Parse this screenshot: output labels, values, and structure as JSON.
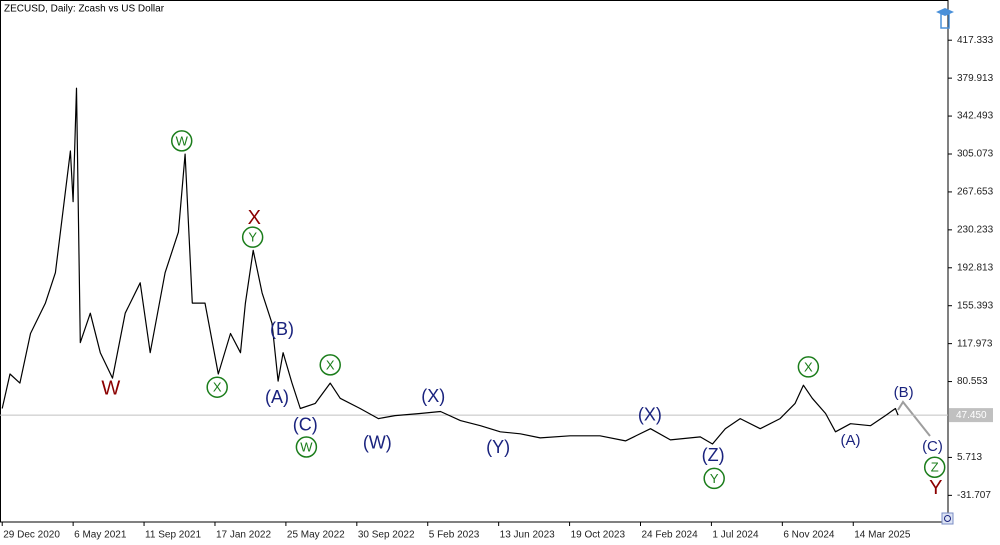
{
  "chart_data": {
    "type": "line",
    "title": "ZECUSD, Daily:  Zcash vs US Dollar",
    "color": "#000000",
    "x": [
      "2020-12-29",
      "2021-01-12",
      "2021-01-30",
      "2021-02-18",
      "2021-03-17",
      "2021-04-04",
      "2021-04-22",
      "2021-05-01",
      "2021-05-06",
      "2021-05-12",
      "2021-05-19",
      "2021-06-06",
      "2021-06-24",
      "2021-07-16",
      "2021-08-08",
      "2021-09-04",
      "2021-09-22",
      "2021-10-19",
      "2021-11-12",
      "2021-11-24",
      "2021-12-07",
      "2021-12-30",
      "2022-01-23",
      "2022-02-14",
      "2022-03-04",
      "2022-03-13",
      "2022-03-27",
      "2022-04-12",
      "2022-04-30",
      "2022-05-11",
      "2022-05-20",
      "2022-06-05",
      "2022-06-20",
      "2022-07-17",
      "2022-08-13",
      "2022-08-31",
      "2022-10-06",
      "2022-11-08",
      "2022-12-08",
      "2023-01-22",
      "2023-02-28",
      "2023-04-05",
      "2023-05-11",
      "2023-06-16",
      "2023-07-22",
      "2023-08-27",
      "2023-10-20",
      "2023-12-13",
      "2024-01-28",
      "2024-03-13",
      "2024-04-18",
      "2024-06-11",
      "2024-07-03",
      "2024-07-26",
      "2024-08-22",
      "2024-09-27",
      "2024-11-02",
      "2024-11-29",
      "2024-12-14",
      "2024-12-30",
      "2025-01-23",
      "2025-02-10",
      "2025-03-09",
      "2025-04-14",
      "2025-05-11",
      "2025-05-29",
      "2025-06-03"
    ],
    "values": [
      54,
      88,
      79,
      128,
      158,
      188,
      268,
      308,
      258,
      370,
      119,
      148,
      109,
      84,
      148,
      178,
      109,
      188,
      228,
      305,
      158,
      158,
      88,
      128,
      109,
      158,
      210,
      168,
      138,
      81,
      109,
      79,
      54,
      59,
      79,
      64,
      54,
      44,
      47,
      49,
      51,
      42,
      37,
      31,
      29,
      25,
      27,
      27,
      22,
      34,
      23,
      26,
      19,
      34,
      44,
      34,
      44,
      59,
      77,
      64,
      49,
      31,
      39,
      37,
      47,
      54,
      47.45
    ],
    "last_price": {
      "value": 47.45,
      "label": "47.450"
    },
    "xlim": [
      "2020-12-25",
      "2025-09-01"
    ],
    "xticks": [
      {
        "value": "2020-12-29",
        "label": "29 Dec 2020"
      },
      {
        "value": "2021-05-06",
        "label": "6 May 2021"
      },
      {
        "value": "2021-09-11",
        "label": "11 Sep 2021"
      },
      {
        "value": "2022-01-17",
        "label": "17 Jan 2022"
      },
      {
        "value": "2022-05-25",
        "label": "25 May 2022"
      },
      {
        "value": "2022-09-30",
        "label": "30 Sep 2022"
      },
      {
        "value": "2023-02-05",
        "label": "5 Feb 2023"
      },
      {
        "value": "2023-06-13",
        "label": "13 Jun 2023"
      },
      {
        "value": "2023-10-19",
        "label": "19 Oct 2023"
      },
      {
        "value": "2024-02-24",
        "label": "24 Feb 2024"
      },
      {
        "value": "2024-07-01",
        "label": "1 Jul 2024"
      },
      {
        "value": "2024-11-06",
        "label": "6 Nov 2024"
      },
      {
        "value": "2025-03-14",
        "label": "14 Mar 2025"
      }
    ],
    "ylim": [
      -58,
      457
    ],
    "yticks": [
      417.333,
      379.913,
      342.493,
      305.073,
      267.653,
      230.233,
      192.813,
      155.393,
      117.973,
      80.553,
      5.713,
      -31.707
    ],
    "annotations": [
      {
        "text": "W",
        "x": "2021-07-13",
        "y": 73,
        "color": "#8b0000",
        "style": "large"
      },
      {
        "text": "W",
        "x": "2021-11-18",
        "y": 318,
        "color": "#1b7d1b",
        "style": "circled"
      },
      {
        "text": "X",
        "x": "2022-01-21",
        "y": 75,
        "color": "#1b7d1b",
        "style": "circled"
      },
      {
        "text": "X",
        "x": "2022-03-29",
        "y": 241,
        "color": "#8b0000",
        "style": "large"
      },
      {
        "text": "Y",
        "x": "2022-03-26",
        "y": 223,
        "color": "#1b7d1b",
        "style": "circled"
      },
      {
        "text": "(B)",
        "x": "2022-05-18",
        "y": 131,
        "color": "#1a237e",
        "style": "plain"
      },
      {
        "text": "(A)",
        "x": "2022-05-09",
        "y": 64,
        "color": "#1a237e",
        "style": "plain"
      },
      {
        "text": "X",
        "x": "2022-08-13",
        "y": 97,
        "color": "#1b7d1b",
        "style": "circled"
      },
      {
        "text": "(C)",
        "x": "2022-06-29",
        "y": 37,
        "color": "#1a237e",
        "style": "plain"
      },
      {
        "text": "W",
        "x": "2022-07-01",
        "y": 16,
        "color": "#1b7d1b",
        "style": "circled"
      },
      {
        "text": "(W)",
        "x": "2022-11-06",
        "y": 19,
        "color": "#1a237e",
        "style": "plain"
      },
      {
        "text": "(X)",
        "x": "2023-02-15",
        "y": 65,
        "color": "#1a237e",
        "style": "plain"
      },
      {
        "text": "(Y)",
        "x": "2023-06-12",
        "y": 15,
        "color": "#1a237e",
        "style": "plain"
      },
      {
        "text": "(X)",
        "x": "2024-03-12",
        "y": 47,
        "color": "#1a237e",
        "style": "plain"
      },
      {
        "text": "(Z)",
        "x": "2024-07-04",
        "y": 7,
        "color": "#1a237e",
        "style": "plain"
      },
      {
        "text": "Y",
        "x": "2024-07-06",
        "y": -15,
        "color": "#1b7d1b",
        "style": "circled"
      },
      {
        "text": "X",
        "x": "2024-12-23",
        "y": 95,
        "color": "#1b7d1b",
        "style": "circled"
      },
      {
        "text": "(A)",
        "x": "2025-03-09",
        "y": 22,
        "color": "#1a237e",
        "style": "small"
      },
      {
        "text": "(B)",
        "x": "2025-06-13",
        "y": 69,
        "color": "#1a237e",
        "style": "small"
      },
      {
        "text": "(C)",
        "x": "2025-08-04",
        "y": 16,
        "color": "#1a237e",
        "style": "small"
      },
      {
        "text": "Z",
        "x": "2025-08-08",
        "y": -4,
        "color": "#1b7d1b",
        "style": "circled"
      },
      {
        "text": "Y",
        "x": "2025-08-10",
        "y": -25,
        "color": "#8b0000",
        "style": "large"
      }
    ]
  }
}
